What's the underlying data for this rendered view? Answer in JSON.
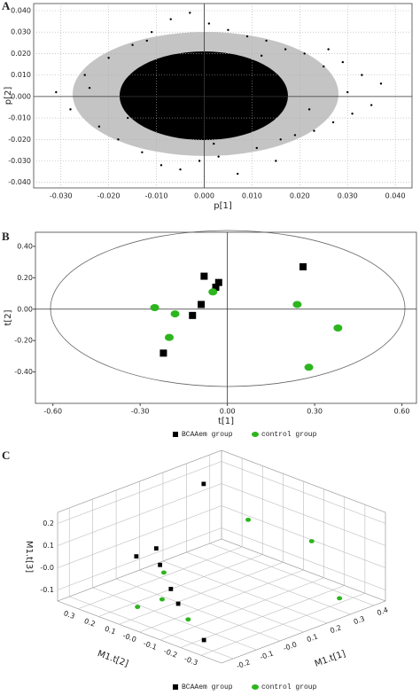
{
  "chart_data": [
    {
      "type": "scatter",
      "panel": "A",
      "x_label": "p[1]",
      "y_label": "p[2]",
      "grid": true,
      "color": "#000000",
      "xlim": [
        -0.0357,
        0.0435
      ],
      "ylim": [
        -0.0426,
        0.0433
      ],
      "xticks": [
        {
          "value": -0.03,
          "label": "-0.030"
        },
        {
          "value": -0.02,
          "label": "-0.020"
        },
        {
          "value": -0.01,
          "label": "-0.010"
        },
        {
          "value": 0,
          "label": "0.000"
        },
        {
          "value": 0.01,
          "label": "0.010"
        },
        {
          "value": 0.02,
          "label": "0.020"
        },
        {
          "value": 0.03,
          "label": "0.030"
        },
        {
          "value": 0.04,
          "label": "0.040"
        }
      ],
      "yticks": [
        {
          "value": 0.04,
          "label": "0.040"
        },
        {
          "value": 0.03,
          "label": "0.030"
        },
        {
          "value": 0.02,
          "label": "0.020"
        },
        {
          "value": 0.01,
          "label": "0.010"
        },
        {
          "value": 0,
          "label": "0.000"
        },
        {
          "value": -0.01,
          "label": "-0.010"
        },
        {
          "value": -0.02,
          "label": "-0.020"
        },
        {
          "value": -0.03,
          "label": "-0.030"
        },
        {
          "value": -0.04,
          "label": "-0.040"
        }
      ],
      "x": [
        -0.031,
        -0.028,
        -0.025,
        -0.022,
        -0.02,
        -0.018,
        -0.015,
        -0.013,
        -0.011,
        -0.009,
        -0.007,
        -0.005,
        -0.003,
        -0.001,
        0.001,
        0.003,
        0.005,
        0.007,
        0.009,
        0.011,
        0.013,
        0.015,
        0.017,
        0.019,
        0.021,
        0.023,
        0.025,
        0.027,
        0.029,
        0.031,
        0.033,
        0.035,
        0.037,
        -0.024,
        -0.016,
        -0.008,
        0.002,
        0.012,
        0.022,
        0.03,
        0.01,
        -0.004,
        0.016,
        -0.012,
        0.026
      ],
      "y": [
        0.002,
        -0.006,
        0.01,
        -0.014,
        0.018,
        -0.02,
        0.024,
        -0.026,
        0.03,
        -0.032,
        0.036,
        -0.034,
        0.039,
        -0.03,
        0.034,
        -0.028,
        0.031,
        -0.036,
        0.028,
        -0.024,
        0.026,
        -0.03,
        0.022,
        -0.018,
        0.02,
        -0.016,
        0.014,
        -0.012,
        0.016,
        -0.008,
        0.01,
        -0.004,
        0.006,
        0.004,
        -0.01,
        0.012,
        -0.022,
        0.019,
        -0.006,
        0.002,
        0.008,
        -0.015,
        -0.02,
        0.026,
        0.022
      ]
    },
    {
      "type": "scatter",
      "panel": "B",
      "x_label": "t[1]",
      "y_label": "t[2]",
      "grid": false,
      "xlim": [
        -0.66,
        0.65
      ],
      "ylim": [
        -0.6,
        0.49
      ],
      "xticks": [
        {
          "value": -0.6,
          "label": "-0.60"
        },
        {
          "value": -0.3,
          "label": "-0.30"
        },
        {
          "value": 0,
          "label": "0.00"
        },
        {
          "value": 0.3,
          "label": "0.30"
        },
        {
          "value": 0.6,
          "label": "0.60"
        }
      ],
      "yticks": [
        {
          "value": 0.4,
          "label": "0.40"
        },
        {
          "value": 0.2,
          "label": "0.20"
        },
        {
          "value": 0,
          "label": "0.00"
        },
        {
          "value": -0.2,
          "label": "-0.20"
        },
        {
          "value": -0.4,
          "label": "-0.40"
        }
      ],
      "series": [
        {
          "name": "BCAAem group",
          "color": "#000000",
          "marker": "square",
          "x": [
            -0.08,
            -0.03,
            -0.04,
            -0.09,
            -0.12,
            -0.22,
            0.26
          ],
          "y": [
            0.21,
            0.17,
            0.14,
            0.03,
            -0.04,
            -0.28,
            0.27
          ]
        },
        {
          "name": "control group",
          "color": "#2db51e",
          "marker": "circle",
          "x": [
            -0.05,
            -0.25,
            -0.18,
            -0.2,
            0.24,
            0.38,
            0.28
          ],
          "y": [
            0.11,
            0.01,
            -0.03,
            -0.18,
            0.03,
            -0.12,
            -0.37
          ]
        }
      ]
    },
    {
      "type": "scatter3d",
      "panel": "C",
      "x_label": "M1.t[1]",
      "y_label": "M1.t[2]",
      "z_label": "M1.t[3]",
      "xlim": [
        -0.25,
        0.45
      ],
      "ylim": [
        -0.4,
        0.4
      ],
      "zlim": [
        -0.15,
        0.25
      ],
      "xticks": [
        -0.2,
        -0.1,
        {
          "value": 0,
          "label": "-0.0"
        },
        0.1,
        0.2,
        0.3,
        0.4
      ],
      "yticks": [
        -0.3,
        -0.2,
        -0.1,
        {
          "value": 0,
          "label": "-0.0"
        },
        0.1,
        0.2,
        0.3
      ],
      "zticks": [
        -0.1,
        {
          "value": 0,
          "label": "-0.0"
        },
        0.1,
        0.2
      ],
      "series": [
        {
          "name": "BCAAem group",
          "color": "#000000",
          "marker": "square",
          "x": [
            -0.08,
            -0.03,
            -0.04,
            -0.09,
            -0.12,
            -0.22,
            0.26
          ],
          "y": [
            0.21,
            0.17,
            0.14,
            0.03,
            -0.04,
            -0.28,
            0.27
          ],
          "z": [
            0.05,
            0.08,
            0.02,
            -0.03,
            -0.06,
            -0.1,
            0.22
          ]
        },
        {
          "name": "control group",
          "color": "#2db51e",
          "marker": "circle",
          "x": [
            -0.05,
            -0.25,
            -0.18,
            -0.2,
            0.24,
            0.38,
            0.28
          ],
          "y": [
            0.11,
            0.01,
            -0.03,
            -0.18,
            0.03,
            -0.12,
            -0.37
          ],
          "z": [
            0.0,
            -0.04,
            -0.02,
            -0.05,
            0.15,
            0.05,
            -0.08
          ]
        }
      ]
    }
  ]
}
